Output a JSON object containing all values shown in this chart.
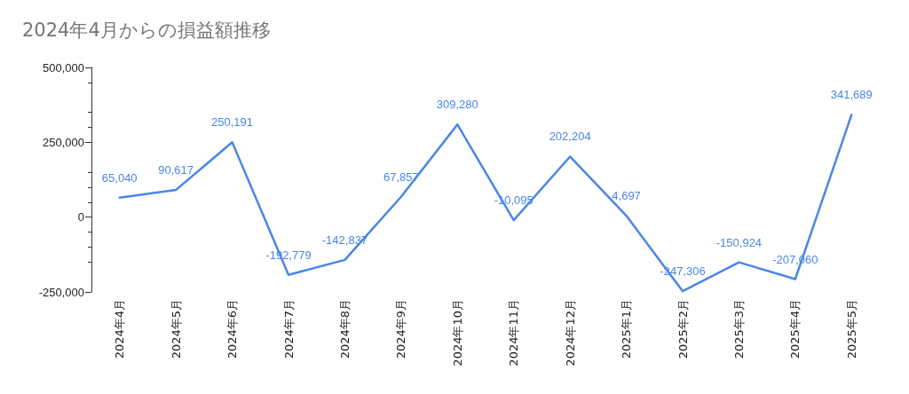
{
  "chart_data": {
    "type": "line",
    "title": "2024年4月からの損益額推移",
    "categories": [
      "2024年4月",
      "2024年5月",
      "2024年6月",
      "2024年7月",
      "2024年8月",
      "2024年9月",
      "2024年10月",
      "2024年11月",
      "2024年12月",
      "2025年1月",
      "2025年2月",
      "2025年3月",
      "2025年4月",
      "2025年5月"
    ],
    "series": [
      {
        "color": "#4a86e8",
        "values": [
          65040,
          90617,
          250191,
          -192779,
          -142837,
          67857,
          309280,
          -10095,
          202204,
          4697,
          -247306,
          -150924,
          -207060,
          341689
        ],
        "value_labels": [
          "65,040",
          "90,617",
          "250,191",
          "-192,779",
          "-142,837",
          "67,857",
          "309,280",
          "-10,095",
          "202,204",
          "4,697",
          "-247,306",
          "-150,924",
          "-207,060",
          "341,689"
        ]
      }
    ],
    "ylim": [
      -250000,
      500000
    ],
    "yticks": [
      {
        "value": -250000,
        "label": "-250,000"
      },
      0,
      {
        "value": 250000,
        "label": "250,000"
      },
      {
        "value": 500000,
        "label": "500,000"
      }
    ],
    "grid": false,
    "marker": "none",
    "line_style": "solid"
  }
}
